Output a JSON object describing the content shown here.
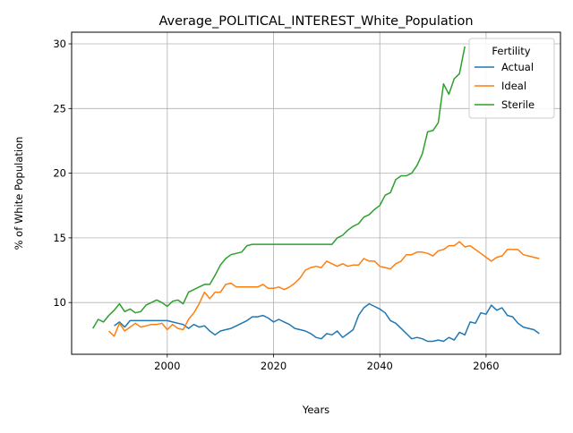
{
  "chart_data": {
    "type": "line",
    "title": "Average_POLITICAL_INTEREST_White_Population",
    "xlabel": "Years",
    "ylabel": "% of White Population",
    "xlim": [
      1982,
      2074
    ],
    "ylim": [
      6.0,
      30.9
    ],
    "xticks": [
      2000,
      2020,
      2040,
      2060
    ],
    "yticks": [
      10,
      15,
      20,
      25,
      30
    ],
    "grid": true,
    "legend": {
      "title": "Fertility",
      "position": "top-right"
    },
    "series": [
      {
        "name": "Actual",
        "color": "#1f77b4",
        "x": [
          1990,
          1991,
          1992,
          1993,
          1994,
          1995,
          1996,
          1997,
          1998,
          1999,
          2000,
          2001,
          2002,
          2003,
          2004,
          2005,
          2006,
          2007,
          2008,
          2009,
          2010,
          2011,
          2012,
          2013,
          2014,
          2015,
          2016,
          2017,
          2018,
          2019,
          2020,
          2021,
          2022,
          2023,
          2024,
          2025,
          2026,
          2027,
          2028,
          2029,
          2030,
          2031,
          2032,
          2033,
          2034,
          2035,
          2036,
          2037,
          2038,
          2039,
          2040,
          2041,
          2042,
          2043,
          2044,
          2045,
          2046,
          2047,
          2048,
          2049,
          2050,
          2051,
          2052,
          2053,
          2054,
          2055,
          2056,
          2057,
          2058,
          2059,
          2060,
          2061,
          2062,
          2063,
          2064,
          2065,
          2066,
          2067,
          2068,
          2069,
          2070
        ],
        "values": [
          8.2,
          8.5,
          8.1,
          8.6,
          8.6,
          8.6,
          8.6,
          8.6,
          8.6,
          8.6,
          8.6,
          8.5,
          8.4,
          8.3,
          8.0,
          8.3,
          8.1,
          8.2,
          7.8,
          7.5,
          7.8,
          7.9,
          8.0,
          8.2,
          8.4,
          8.6,
          8.9,
          8.9,
          9.0,
          8.8,
          8.5,
          8.7,
          8.5,
          8.3,
          8.0,
          7.9,
          7.8,
          7.6,
          7.3,
          7.2,
          7.6,
          7.5,
          7.8,
          7.3,
          7.6,
          7.9,
          9.0,
          9.6,
          9.9,
          9.7,
          9.5,
          9.2,
          8.6,
          8.4,
          8.0,
          7.6,
          7.2,
          7.3,
          7.2,
          7.0,
          7.0,
          7.1,
          7.0,
          7.3,
          7.1,
          7.7,
          7.5,
          8.5,
          8.4,
          9.2,
          9.1,
          9.8,
          9.4,
          9.6,
          9.0,
          8.9,
          8.4,
          8.1,
          8.0,
          7.9,
          7.6
        ]
      },
      {
        "name": "Ideal",
        "color": "#ff7f0e",
        "x": [
          1989,
          1990,
          1991,
          1992,
          1993,
          1994,
          1995,
          1996,
          1997,
          1998,
          1999,
          2000,
          2001,
          2002,
          2003,
          2004,
          2005,
          2006,
          2007,
          2008,
          2009,
          2010,
          2011,
          2012,
          2013,
          2014,
          2015,
          2016,
          2017,
          2018,
          2019,
          2020,
          2021,
          2022,
          2023,
          2024,
          2025,
          2026,
          2027,
          2028,
          2029,
          2030,
          2031,
          2032,
          2033,
          2034,
          2035,
          2036,
          2037,
          2038,
          2039,
          2040,
          2041,
          2042,
          2043,
          2044,
          2045,
          2046,
          2047,
          2048,
          2049,
          2050,
          2051,
          2052,
          2053,
          2054,
          2055,
          2056,
          2057,
          2058,
          2059,
          2060,
          2061,
          2062,
          2063,
          2064,
          2065,
          2066,
          2067,
          2068,
          2069,
          2070
        ],
        "values": [
          7.8,
          7.4,
          8.4,
          7.8,
          8.1,
          8.4,
          8.1,
          8.2,
          8.3,
          8.3,
          8.4,
          7.9,
          8.3,
          8.0,
          7.9,
          8.7,
          9.2,
          9.9,
          10.8,
          10.3,
          10.8,
          10.8,
          11.4,
          11.5,
          11.2,
          11.2,
          11.2,
          11.2,
          11.2,
          11.4,
          11.1,
          11.1,
          11.2,
          11.0,
          11.2,
          11.5,
          11.9,
          12.5,
          12.7,
          12.8,
          12.7,
          13.2,
          13.0,
          12.8,
          13.0,
          12.8,
          12.9,
          12.9,
          13.4,
          13.2,
          13.2,
          12.8,
          12.7,
          12.6,
          13.0,
          13.2,
          13.7,
          13.7,
          13.9,
          13.9,
          13.8,
          13.6,
          14.0,
          14.1,
          14.4,
          14.4,
          14.7,
          14.3,
          14.4,
          14.1,
          13.8,
          13.5,
          13.2,
          13.5,
          13.6,
          14.1,
          14.1,
          14.1,
          13.7,
          13.6,
          13.5,
          13.4
        ]
      },
      {
        "name": "Sterile",
        "color": "#2ca02c",
        "x": [
          1986,
          1987,
          1988,
          1989,
          1990,
          1991,
          1992,
          1993,
          1994,
          1995,
          1996,
          1997,
          1998,
          1999,
          2000,
          2001,
          2002,
          2003,
          2004,
          2005,
          2006,
          2007,
          2008,
          2009,
          2010,
          2011,
          2012,
          2013,
          2014,
          2015,
          2016,
          2017,
          2018,
          2019,
          2020,
          2021,
          2022,
          2023,
          2024,
          2025,
          2026,
          2027,
          2028,
          2029,
          2030,
          2031,
          2032,
          2033,
          2034,
          2035,
          2036,
          2037,
          2038,
          2039,
          2040,
          2041,
          2042,
          2043,
          2044,
          2045,
          2046,
          2047,
          2048,
          2049,
          2050,
          2051,
          2052,
          2053,
          2054,
          2055,
          2056
        ],
        "values": [
          8.0,
          8.7,
          8.5,
          9.0,
          9.4,
          9.9,
          9.3,
          9.5,
          9.2,
          9.3,
          9.8,
          10.0,
          10.2,
          10.0,
          9.7,
          10.1,
          10.2,
          9.9,
          10.8,
          11.0,
          11.2,
          11.4,
          11.4,
          12.1,
          12.9,
          13.4,
          13.7,
          13.8,
          13.9,
          14.4,
          14.5,
          14.5,
          14.5,
          14.5,
          14.5,
          14.5,
          14.5,
          14.5,
          14.5,
          14.5,
          14.5,
          14.5,
          14.5,
          14.5,
          14.5,
          14.5,
          15.0,
          15.2,
          15.6,
          15.9,
          16.1,
          16.6,
          16.8,
          17.2,
          17.5,
          18.3,
          18.5,
          19.5,
          19.8,
          19.8,
          20.0,
          20.6,
          21.5,
          23.2,
          23.3,
          23.9,
          26.9,
          26.1,
          27.3,
          27.7,
          29.8
        ]
      }
    ]
  }
}
